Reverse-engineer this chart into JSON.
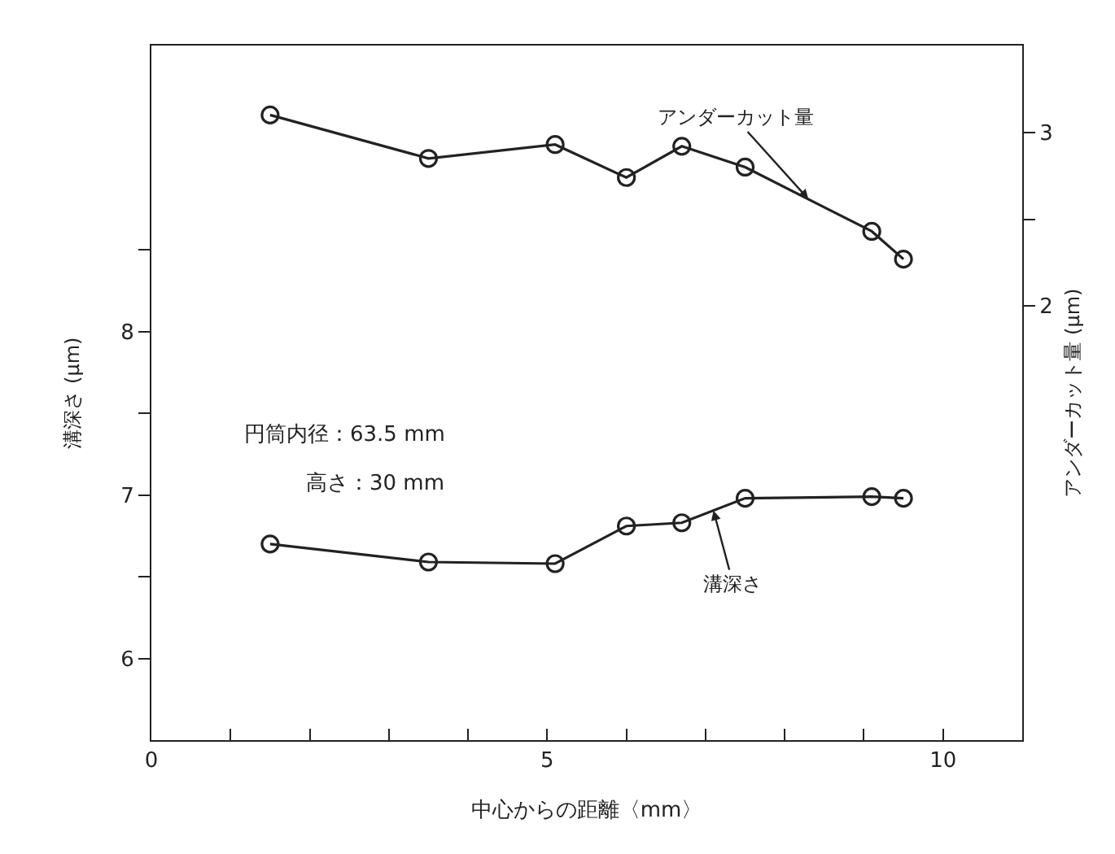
{
  "chart_data": {
    "type": "line",
    "xlabel": "中心からの距離〈mm〉",
    "ylabel": "溝深さ (µm)",
    "y2label": "アンダーカット量 (µm)",
    "annotations": [
      "円筒内径：63.5 mm",
      "高さ：30 mm"
    ],
    "xlim": [
      0,
      11
    ],
    "xticks": [
      0,
      {
        "value": 1,
        "label": null
      },
      {
        "value": 2,
        "label": null
      },
      {
        "value": 3,
        "label": null
      },
      {
        "value": 4,
        "label": null
      },
      5,
      {
        "value": 6,
        "label": null
      },
      {
        "value": 7,
        "label": null
      },
      {
        "value": 8,
        "label": null
      },
      {
        "value": 9,
        "label": null
      },
      10
    ],
    "ylim": [
      5.5,
      9.75
    ],
    "yticks": [
      6,
      {
        "value": 6.5,
        "label": null
      },
      7,
      {
        "value": 7.5,
        "label": null
      },
      8,
      {
        "value": 8.5,
        "label": null
      }
    ],
    "y2lim": [
      -0.5,
      3.5
    ],
    "y2ticks": [
      2,
      {
        "value": 2.5,
        "label": null
      },
      3
    ],
    "x": [
      1.5,
      3.5,
      5.1,
      6.0,
      6.7,
      7.5,
      9.1,
      9.5
    ],
    "marker": "circle",
    "line_style": "solid",
    "grid": false,
    "legend": false,
    "series": [
      {
        "name": "アンダーカット量",
        "color": "#222222",
        "axis": "y2",
        "values": [
          3.1,
          2.85,
          2.93,
          2.74,
          2.92,
          2.8,
          2.43,
          2.27
        ]
      },
      {
        "name": "溝深さ",
        "color": "#222222",
        "values": [
          6.7,
          6.59,
          6.58,
          6.81,
          6.83,
          6.98,
          6.99,
          6.98
        ]
      }
    ]
  }
}
